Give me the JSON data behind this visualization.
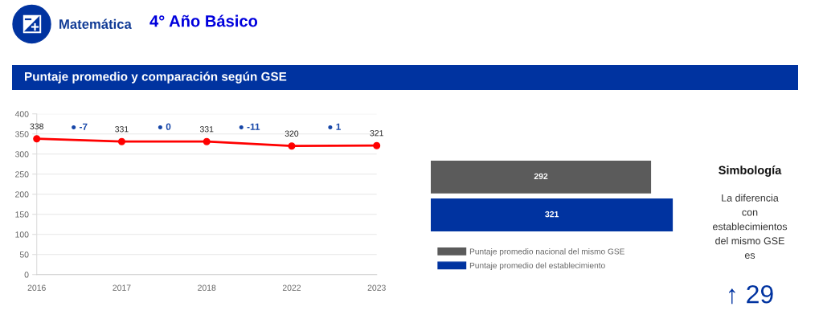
{
  "chart_data": [
    {
      "type": "other",
      "title": "Matemática",
      "subtitle": "4° Año Básico",
      "annotations": [
        "Puntaje promedio y comparación según GSE"
      ]
    },
    {
      "type": "line",
      "categories": [
        "2016",
        "2017",
        "2018",
        "2022",
        "2023"
      ],
      "values": [
        338,
        331,
        331,
        320,
        321
      ],
      "color": "#ff0000",
      "marker": "circle",
      "line_style": "solid",
      "data_labels": true,
      "ylim": [
        0,
        400
      ],
      "yticks": [
        0,
        50,
        100,
        150,
        200,
        250,
        300,
        350,
        400
      ],
      "grid": "y",
      "annotations": [
        "● -7",
        "● 0",
        "● -11",
        "● 1"
      ]
    },
    {
      "type": "bar",
      "orientation": "horizontal",
      "categories": [
        null
      ],
      "series": [
        {
          "name": "Puntaje promedio nacional del mismo GSE",
          "color": "#5b5b5b",
          "values": [
            292
          ]
        },
        {
          "name": "Puntaje promedio del establecimiento",
          "color": "#0033a0",
          "values": [
            321
          ]
        }
      ],
      "data_labels": true,
      "legend": "bottom",
      "tick_labels": false
    },
    {
      "type": "other",
      "title": "Simbología",
      "annotations": [
        "La diferencia\ncon\nestablecimientos\ndel mismo GSE\nes",
        "↑ 29"
      ]
    }
  ]
}
